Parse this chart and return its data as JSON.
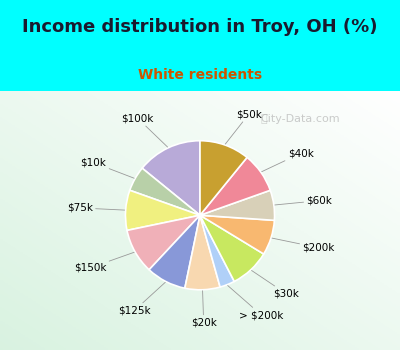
{
  "title": "Income distribution in Troy, OH (%)",
  "subtitle": "White residents",
  "watermark": "City-Data.com",
  "bg_cyan": "#00ffff",
  "bg_chart": "#dff0e8",
  "subtitle_color": "#cc5500",
  "title_color": "#1a1a2e",
  "segments": [
    {
      "label": "$100k",
      "value": 13,
      "color": "#b8aad8"
    },
    {
      "label": "$10k",
      "value": 5,
      "color": "#b8d0a8"
    },
    {
      "label": "$75k",
      "value": 8,
      "color": "#f0f080"
    },
    {
      "label": "$150k",
      "value": 9,
      "color": "#f0b0b8"
    },
    {
      "label": "$125k",
      "value": 8,
      "color": "#8898d8"
    },
    {
      "label": "$20k",
      "value": 7,
      "color": "#f8d8b0"
    },
    {
      "label": "> $200k",
      "value": 3,
      "color": "#b0d0f8"
    },
    {
      "label": "$30k",
      "value": 8,
      "color": "#c8e860"
    },
    {
      "label": "$200k",
      "value": 7,
      "color": "#f8b870"
    },
    {
      "label": "$60k",
      "value": 6,
      "color": "#d8d0b8"
    },
    {
      "label": "$40k",
      "value": 8,
      "color": "#f08898"
    },
    {
      "label": "$50k",
      "value": 10,
      "color": "#c8a030"
    }
  ],
  "title_fontsize": 13,
  "subtitle_fontsize": 10,
  "label_fontsize": 7.5,
  "watermark_fontsize": 8
}
